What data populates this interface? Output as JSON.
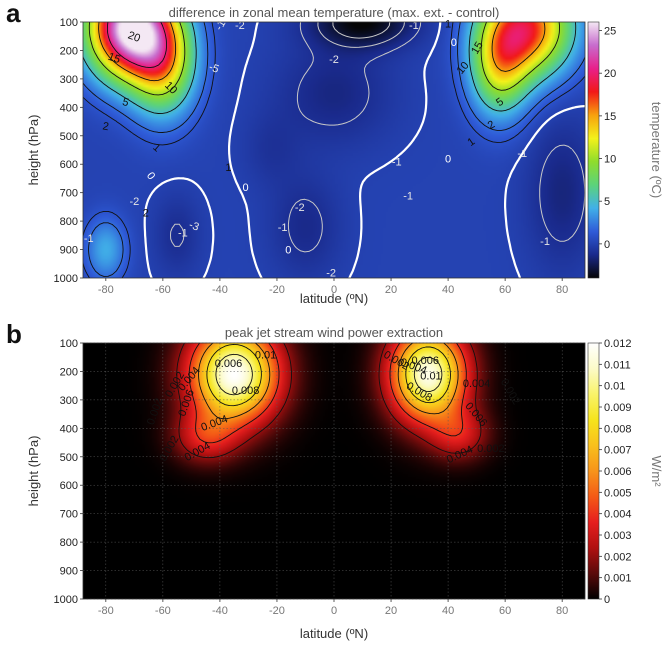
{
  "chart_data": [
    {
      "panel_letter": "a",
      "type": "heatmap",
      "title": "difference in zonal mean temperature (max. ext. - control)",
      "xlabel": "latitude (ºN)",
      "ylabel": "height (hPa)",
      "xlim": [
        -88,
        88
      ],
      "ylim": [
        1000,
        100
      ],
      "xticks": [
        -80,
        -60,
        -40,
        -20,
        0,
        20,
        40,
        60,
        80
      ],
      "yticks": [
        100,
        200,
        300,
        400,
        500,
        600,
        700,
        800,
        900,
        1000
      ],
      "colorbar": {
        "label": "temperature (ºC)",
        "range": [
          -4,
          26
        ],
        "ticks": [
          0,
          5,
          10,
          15,
          20,
          25
        ],
        "colors": [
          "#050505",
          "#1a2a8c",
          "#2f5bd8",
          "#41b0e8",
          "#5cd37a",
          "#8fdc2c",
          "#f3f21a",
          "#f7a10d",
          "#f21818",
          "#e8208a",
          "#c76ccd",
          "#f4e8f4"
        ]
      },
      "features": [
        {
          "lat": -72,
          "p": 120,
          "value": 26
        },
        {
          "lat": -60,
          "p": 240,
          "value": 12
        },
        {
          "lat": 68,
          "p": 120,
          "value": 17
        },
        {
          "lat": 58,
          "p": 260,
          "value": 10
        },
        {
          "lat": -80,
          "p": 900,
          "value": 4
        },
        {
          "lat": 10,
          "p": 100,
          "value": -4
        }
      ],
      "contour_labels": [
        "20",
        "15",
        "10",
        "5",
        "2",
        "1",
        "0",
        "-1",
        "-2",
        "-3",
        "-5",
        "15",
        "10",
        "5",
        "2",
        "1",
        "0",
        "-1",
        "-2",
        "1",
        "0",
        "-1",
        "-2",
        "2",
        "0",
        "-1",
        "1",
        "-1",
        "-2",
        "0",
        "-1",
        "-1",
        "-2",
        "-1",
        "-1"
      ],
      "grid": false
    },
    {
      "panel_letter": "b",
      "type": "heatmap",
      "title": "peak jet stream wind power extraction",
      "xlabel": "latitude (ºN)",
      "ylabel": "height (hPa)",
      "xlim": [
        -88,
        88
      ],
      "ylim": [
        1000,
        100
      ],
      "xticks": [
        -80,
        -60,
        -40,
        -20,
        0,
        20,
        40,
        60,
        80
      ],
      "yticks": [
        100,
        200,
        300,
        400,
        500,
        600,
        700,
        800,
        900,
        1000
      ],
      "colorbar": {
        "label": "W/m²",
        "range": [
          0,
          0.012
        ],
        "ticks": [
          0,
          0.001,
          0.002,
          0.003,
          0.004,
          0.005,
          0.006,
          0.007,
          0.008,
          0.009,
          0.01,
          0.011,
          0.012
        ],
        "tick_labels": [
          "0",
          "0.001",
          "0.002",
          "0.003",
          "0.004",
          "0.005",
          "0.006",
          "0.007",
          "0.008",
          "0.009",
          "0.01",
          "0.011",
          "0.012"
        ],
        "colors": [
          "#000000",
          "#5a0a0a",
          "#b01010",
          "#e61e1e",
          "#f45a16",
          "#f7941a",
          "#f9c01c",
          "#f6e41c",
          "#f9f36a",
          "#fcfbc8",
          "#ffffff"
        ]
      },
      "jets": [
        {
          "lat": -35,
          "p": 210,
          "peak": 0.012
        },
        {
          "lat": 33,
          "p": 210,
          "peak": 0.0115
        }
      ],
      "contour_labels": [
        "0.002",
        "0.004",
        "0.006",
        "0.008",
        "0.01",
        "0.002",
        "0.004",
        "0.006",
        "0.004",
        "0.002",
        "0.002",
        "0.004",
        "0.006",
        "0.008",
        "0.01",
        "0.002",
        "0.004",
        "0.006",
        "0.004",
        "0.002"
      ],
      "grid": true
    }
  ]
}
